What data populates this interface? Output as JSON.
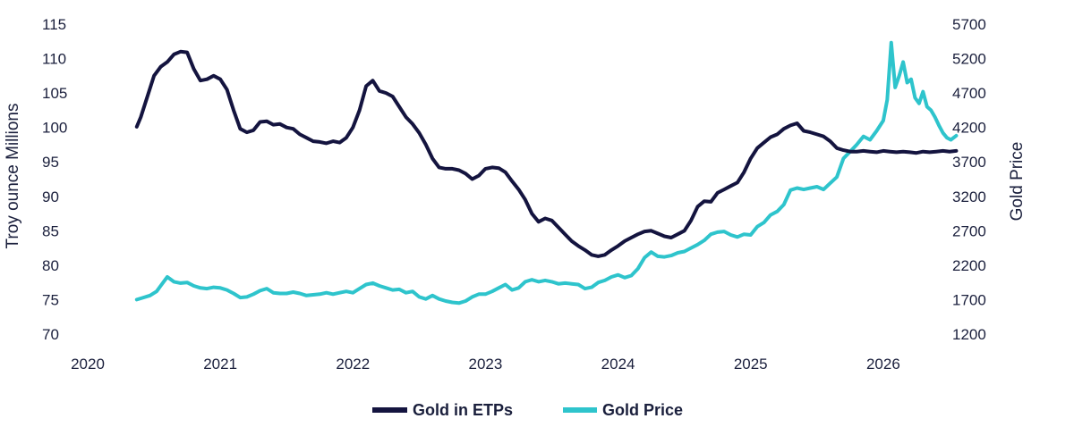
{
  "chart_data": {
    "type": "line",
    "title": "",
    "xlabel": "",
    "ylabel_left": "Troy ounce Millions",
    "ylabel_right": "Gold Price",
    "xlim": [
      2020,
      2026.75
    ],
    "ylim_left": [
      70,
      115
    ],
    "ylim_right": [
      1200,
      5700
    ],
    "x_ticks": [
      "2020",
      "2021",
      "2022",
      "2023",
      "2024",
      "2025",
      "2026"
    ],
    "y_left_ticks": [
      "70",
      "75",
      "80",
      "85",
      "90",
      "95",
      "100",
      "105",
      "110",
      "115"
    ],
    "y_right_ticks": [
      "1200",
      "1700",
      "2200",
      "2700",
      "3200",
      "3700",
      "4200",
      "4700",
      "5200",
      "5700"
    ],
    "grid": false,
    "legend": "bottom-center",
    "series": [
      {
        "name": "Gold in ETPs",
        "axis": "left",
        "color": "#14143f",
        "x": [
          2020.37,
          2020.4,
          2020.45,
          2020.5,
          2020.55,
          2020.6,
          2020.65,
          2020.7,
          2020.75,
          2020.8,
          2020.85,
          2020.9,
          2020.95,
          2021.0,
          2021.05,
          2021.1,
          2021.15,
          2021.2,
          2021.25,
          2021.3,
          2021.35,
          2021.4,
          2021.45,
          2021.5,
          2021.55,
          2021.6,
          2021.65,
          2021.7,
          2021.75,
          2021.8,
          2021.85,
          2021.9,
          2021.95,
          2022.0,
          2022.05,
          2022.1,
          2022.15,
          2022.2,
          2022.25,
          2022.3,
          2022.35,
          2022.4,
          2022.45,
          2022.5,
          2022.55,
          2022.6,
          2022.65,
          2022.7,
          2022.75,
          2022.8,
          2022.85,
          2022.9,
          2022.95,
          2023.0,
          2023.05,
          2023.1,
          2023.15,
          2023.2,
          2023.25,
          2023.3,
          2023.35,
          2023.4,
          2023.45,
          2023.5,
          2023.55,
          2023.6,
          2023.65,
          2023.7,
          2023.75,
          2023.8,
          2023.85,
          2023.9,
          2023.95,
          2024.0,
          2024.05,
          2024.1,
          2024.15,
          2024.2,
          2024.25,
          2024.3,
          2024.35,
          2024.4,
          2024.45,
          2024.5,
          2024.55,
          2024.6,
          2024.65,
          2024.7,
          2024.75,
          2024.8,
          2024.85,
          2024.9,
          2024.95,
          2025.0,
          2025.05,
          2025.1,
          2025.15,
          2025.2,
          2025.25,
          2025.3,
          2025.35,
          2025.4,
          2025.45,
          2025.5,
          2025.55,
          2025.6,
          2025.65,
          2025.7,
          2025.75,
          2025.8,
          2025.85,
          2025.9,
          2025.95,
          2026.0,
          2026.05,
          2026.1,
          2026.15,
          2026.2,
          2026.25,
          2026.3,
          2026.35,
          2026.4,
          2026.45,
          2026.5,
          2026.55
        ],
        "y": [
          100.1,
          101.5,
          104.5,
          107.5,
          108.8,
          109.5,
          110.6,
          111.0,
          110.9,
          108.5,
          106.8,
          107.0,
          107.5,
          107.0,
          105.5,
          102.5,
          99.8,
          99.3,
          99.6,
          100.8,
          100.9,
          100.4,
          100.5,
          100.0,
          99.8,
          99.0,
          98.5,
          98.0,
          97.9,
          97.7,
          98.0,
          97.8,
          98.5,
          100.0,
          102.5,
          106.0,
          106.8,
          105.3,
          105.0,
          104.5,
          103.0,
          101.5,
          100.5,
          99.2,
          97.5,
          95.5,
          94.2,
          94.0,
          94.0,
          93.8,
          93.3,
          92.5,
          93.0,
          94.0,
          94.2,
          94.1,
          93.5,
          92.2,
          91.0,
          89.5,
          87.5,
          86.3,
          86.8,
          86.5,
          85.5,
          84.5,
          83.5,
          82.8,
          82.2,
          81.5,
          81.3,
          81.5,
          82.2,
          82.8,
          83.5,
          84.0,
          84.5,
          84.9,
          85.0,
          84.6,
          84.2,
          84.0,
          84.5,
          85.0,
          86.5,
          88.5,
          89.3,
          89.2,
          90.5,
          91.0,
          91.5,
          92.0,
          93.5,
          95.5,
          97.0,
          97.8,
          98.6,
          99.0,
          99.8,
          100.3,
          100.6,
          99.5,
          99.3,
          99.0,
          98.7,
          98.0,
          97.0,
          96.7,
          96.5,
          96.5,
          96.6,
          96.5,
          96.4,
          96.6,
          96.5,
          96.4,
          96.5,
          96.4,
          96.3,
          96.5,
          96.4,
          96.5,
          96.6,
          96.5,
          96.6
        ],
        "y_note": ""
      },
      {
        "name": "Gold Price",
        "axis": "right",
        "color": "#2ec4cc",
        "x": [
          2020.37,
          2020.42,
          2020.47,
          2020.52,
          2020.55,
          2020.6,
          2020.65,
          2020.7,
          2020.75,
          2020.8,
          2020.85,
          2020.9,
          2020.95,
          2021.0,
          2021.05,
          2021.1,
          2021.15,
          2021.2,
          2021.25,
          2021.3,
          2021.35,
          2021.4,
          2021.45,
          2021.5,
          2021.55,
          2021.6,
          2021.65,
          2021.7,
          2021.75,
          2021.8,
          2021.85,
          2021.9,
          2021.95,
          2022.0,
          2022.05,
          2022.1,
          2022.15,
          2022.2,
          2022.25,
          2022.3,
          2022.35,
          2022.4,
          2022.45,
          2022.5,
          2022.55,
          2022.6,
          2022.65,
          2022.7,
          2022.75,
          2022.8,
          2022.85,
          2022.9,
          2022.95,
          2023.0,
          2023.05,
          2023.1,
          2023.15,
          2023.2,
          2023.25,
          2023.3,
          2023.35,
          2023.4,
          2023.45,
          2023.5,
          2023.55,
          2023.6,
          2023.65,
          2023.7,
          2023.75,
          2023.8,
          2023.85,
          2023.9,
          2023.95,
          2024.0,
          2024.05,
          2024.1,
          2024.15,
          2024.2,
          2024.25,
          2024.3,
          2024.35,
          2024.4,
          2024.45,
          2024.5,
          2024.55,
          2024.6,
          2024.65,
          2024.7,
          2024.75,
          2024.8,
          2024.85,
          2024.9,
          2024.95,
          2025.0,
          2025.05,
          2025.1,
          2025.15,
          2025.2,
          2025.25,
          2025.3,
          2025.35,
          2025.4,
          2025.45,
          2025.5,
          2025.55,
          2025.6,
          2025.65,
          2025.7,
          2025.75,
          2025.8,
          2025.85,
          2025.9,
          2025.95,
          2026.0,
          2026.03,
          2026.06,
          2026.09,
          2026.12,
          2026.15,
          2026.18,
          2026.21,
          2026.24,
          2026.27,
          2026.3,
          2026.33,
          2026.36,
          2026.39,
          2026.42,
          2026.45,
          2026.48,
          2026.51,
          2026.55
        ],
        "y": [
          1700,
          1730,
          1760,
          1820,
          1900,
          2030,
          1960,
          1940,
          1950,
          1900,
          1870,
          1860,
          1880,
          1870,
          1840,
          1790,
          1730,
          1740,
          1780,
          1830,
          1860,
          1800,
          1790,
          1790,
          1810,
          1790,
          1760,
          1770,
          1780,
          1800,
          1780,
          1800,
          1820,
          1800,
          1860,
          1920,
          1940,
          1900,
          1870,
          1840,
          1850,
          1800,
          1820,
          1740,
          1710,
          1760,
          1710,
          1680,
          1660,
          1650,
          1680,
          1740,
          1780,
          1780,
          1820,
          1870,
          1920,
          1840,
          1870,
          1960,
          1990,
          1960,
          1980,
          1960,
          1930,
          1940,
          1930,
          1920,
          1860,
          1880,
          1950,
          1980,
          2030,
          2060,
          2020,
          2050,
          2150,
          2310,
          2390,
          2330,
          2320,
          2340,
          2380,
          2400,
          2450,
          2500,
          2560,
          2650,
          2680,
          2690,
          2640,
          2610,
          2650,
          2640,
          2760,
          2820,
          2930,
          2980,
          3080,
          3290,
          3320,
          3300,
          3320,
          3340,
          3300,
          3390,
          3480,
          3750,
          3850,
          3950,
          4070,
          4020,
          4150,
          4300,
          4600,
          5430,
          4780,
          4950,
          5150,
          4850,
          4900,
          4630,
          4550,
          4720,
          4500,
          4450,
          4350,
          4230,
          4120,
          4050,
          4020,
          4080
        ]
      }
    ]
  }
}
